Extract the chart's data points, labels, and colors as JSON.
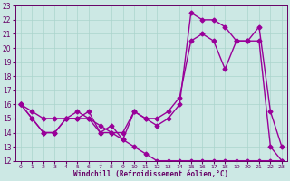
{
  "xlabel": "Windchill (Refroidissement éolien,°C)",
  "bg_color": "#cce8e4",
  "grid_color": "#aad4cc",
  "line_color": "#990099",
  "xlim": [
    -0.5,
    23.5
  ],
  "ylim": [
    12,
    23
  ],
  "xticks": [
    0,
    1,
    2,
    3,
    4,
    5,
    6,
    7,
    8,
    9,
    10,
    11,
    12,
    13,
    14,
    15,
    16,
    17,
    18,
    19,
    20,
    21,
    22,
    23
  ],
  "yticks": [
    12,
    13,
    14,
    15,
    16,
    17,
    18,
    19,
    20,
    21,
    22,
    23
  ],
  "line1_x": [
    0,
    1,
    2,
    3,
    4,
    5,
    6,
    7,
    8,
    9,
    10,
    11,
    12,
    13,
    14,
    15,
    16,
    17,
    18,
    19,
    20,
    21,
    22,
    23
  ],
  "line1_y": [
    16,
    15,
    14,
    14,
    15,
    15.5,
    15,
    14,
    14.5,
    13.5,
    15.5,
    15,
    14.5,
    15,
    16,
    22.5,
    22,
    22,
    21.5,
    20.5,
    20.5,
    20.5,
    13,
    12
  ],
  "line2_x": [
    0,
    1,
    2,
    3,
    4,
    5,
    6,
    7,
    8,
    9,
    10,
    11,
    12,
    13,
    14,
    15,
    16,
    17,
    18,
    19,
    20,
    21,
    22,
    23
  ],
  "line2_y": [
    16,
    15,
    14,
    14,
    15,
    15,
    15.5,
    14,
    14,
    14,
    15.5,
    15,
    15,
    15.5,
    16.5,
    20.5,
    21,
    20.5,
    18.5,
    20.5,
    20.5,
    21.5,
    15.5,
    13
  ],
  "line3_x": [
    0,
    1,
    2,
    3,
    4,
    5,
    6,
    7,
    8,
    9,
    10,
    11,
    12,
    13,
    14,
    15,
    16,
    17,
    18,
    19,
    20,
    21,
    22,
    23
  ],
  "line3_y": [
    16,
    15.5,
    15,
    15,
    15,
    15,
    15,
    14.5,
    14,
    13.5,
    13,
    12.5,
    12,
    12,
    12,
    12,
    12,
    12,
    12,
    12,
    12,
    12,
    12,
    12
  ],
  "marker": "D",
  "markersize": 2.5,
  "linewidth": 1.0
}
